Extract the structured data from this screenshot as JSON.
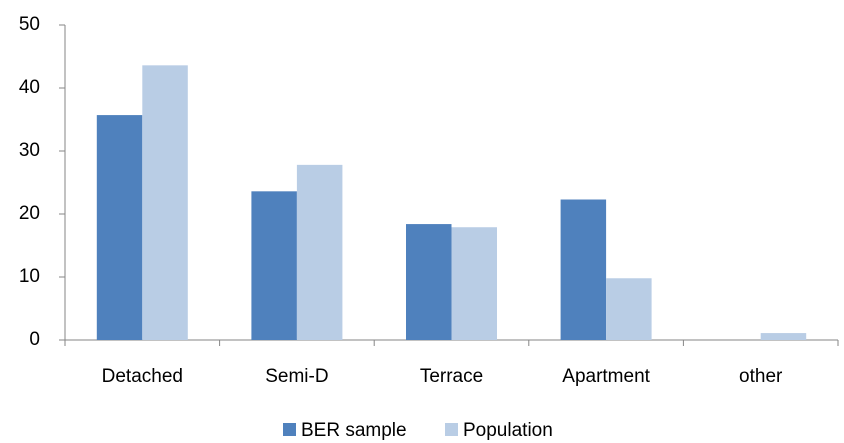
{
  "chart_data": {
    "type": "bar",
    "categories": [
      "Detached",
      "Semi-D",
      "Terrace",
      "Apartment",
      "other"
    ],
    "series": [
      {
        "name": "BER sample",
        "color": "#4f81bd",
        "values": [
          35.7,
          23.6,
          18.4,
          22.3,
          0
        ]
      },
      {
        "name": "Population",
        "color": "#b9cde5",
        "values": [
          43.6,
          27.8,
          17.9,
          9.8,
          1.1
        ]
      }
    ],
    "ylim": [
      0,
      50
    ],
    "yticks": [
      0,
      10,
      20,
      30,
      40,
      50
    ],
    "grid": false,
    "legend": "bottom"
  }
}
